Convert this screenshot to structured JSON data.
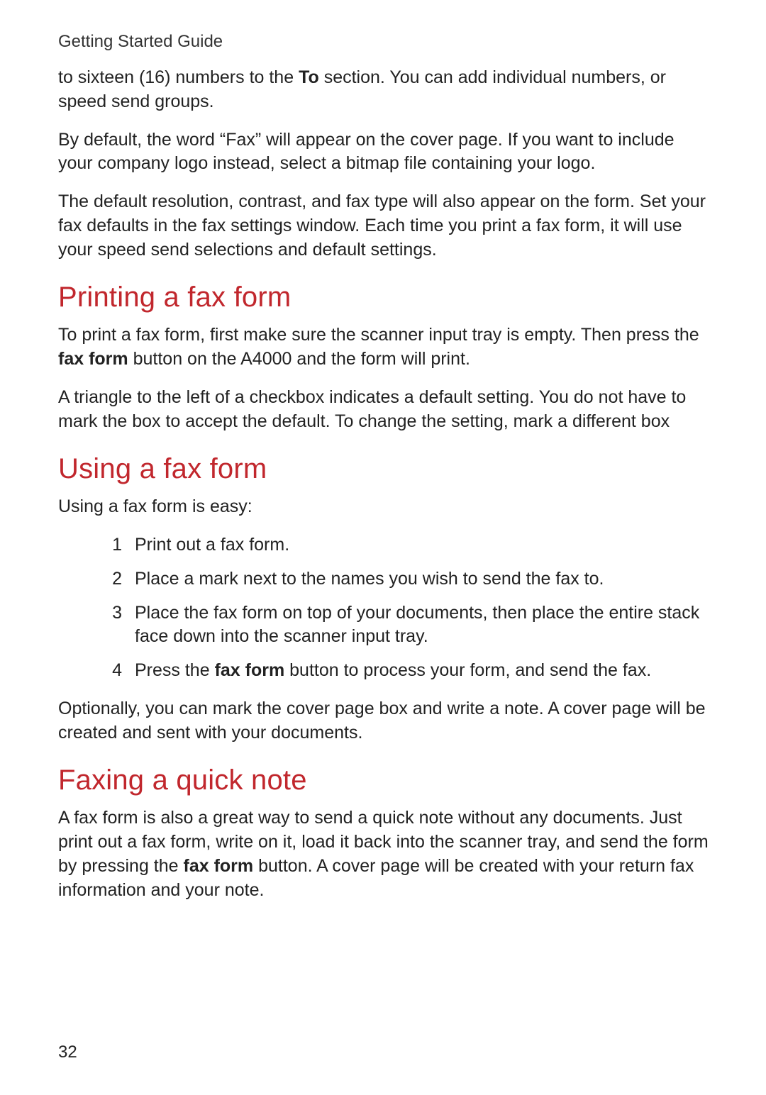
{
  "header": "Getting Started Guide",
  "intro": {
    "p1_a": "to sixteen (16) numbers to the ",
    "p1_bold": "To",
    "p1_b": " section. You can add individual numbers, or speed send groups.",
    "p2": "By default, the word “Fax” will appear on the cover page. If you want to include your company logo instead, select a bitmap file containing your logo.",
    "p3": "The default resolution, contrast, and fax type will also appear on the form. Set your fax defaults in the fax settings window. Each time you print a fax form, it will use your speed send selections and default settings."
  },
  "section1": {
    "title": "Printing a fax form",
    "p1_a": "To print a fax form, first make sure the scanner input tray is empty. Then press the ",
    "p1_bold": "fax form",
    "p1_b": " button on the A4000 and the form will print.",
    "p2": "A triangle to the left of a checkbox indicates a default setting. You do not have to mark the box to accept the default. To change the setting, mark a different box"
  },
  "section2": {
    "title": "Using a fax form",
    "lead": "Using a fax form is easy:",
    "steps": {
      "n1": "1",
      "s1": "Print out a fax form.",
      "n2": "2",
      "s2": "Place a mark next to the names you wish to send the fax to.",
      "n3": "3",
      "s3": "Place the fax form on top of your documents, then place the entire stack face down into the scanner input tray.",
      "n4": "4",
      "s4_a": "Press the ",
      "s4_bold": "fax form",
      "s4_b": " button to process your form, and send the fax."
    },
    "tail": "Optionally, you can mark the cover page box and write a note. A cover page will be created and sent with your documents."
  },
  "section3": {
    "title": "Faxing a quick note",
    "p1_a": "A fax form is also a great way to send a quick note without any documents. Just print out a fax form, write on it, load it back into the scanner tray, and send the form by pressing the ",
    "p1_bold": "fax form",
    "p1_b": " button. A cover page will be created with your return fax information and your note."
  },
  "page_number": "32",
  "colors": {
    "heading": "#c1272d",
    "text": "#222222",
    "background": "#ffffff"
  }
}
